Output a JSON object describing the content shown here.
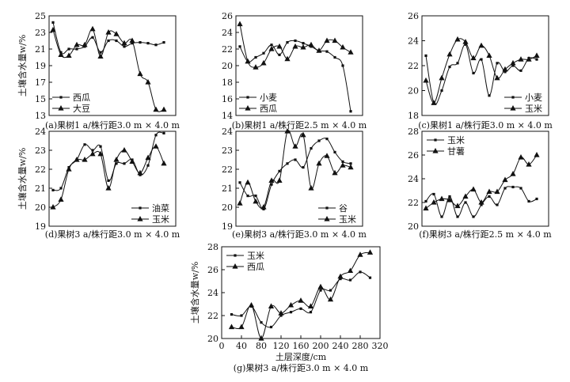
{
  "figure": {
    "ylabel": "土壤含水量w/%",
    "xlabel": "土层深度/cm"
  },
  "chart_data": [
    {
      "type": "line",
      "title": "(a)果树1 a/株行距3.0 m × 4.0 m",
      "ylabel": "土壤含水量w/%",
      "xlim": [
        0,
        320
      ],
      "ylim": [
        13,
        25
      ],
      "yticks": [
        13,
        15,
        17,
        19,
        21,
        23,
        25
      ],
      "legend_position": "bottom-left",
      "series": [
        {
          "name": "西瓜",
          "marker": "square",
          "x": [
            10,
            30,
            50,
            70,
            90,
            110,
            130,
            150,
            170,
            190,
            210,
            230,
            250,
            270,
            290
          ],
          "y": [
            24.2,
            20.6,
            21.0,
            21.0,
            21.3,
            22.4,
            20.6,
            22.0,
            22.0,
            21.3,
            21.7,
            21.8,
            21.7,
            21.5,
            21.8
          ]
        },
        {
          "name": "大豆",
          "marker": "triangle",
          "x": [
            10,
            30,
            50,
            70,
            90,
            110,
            130,
            150,
            170,
            190,
            210,
            230,
            250,
            270,
            290
          ],
          "y": [
            23.3,
            20.3,
            20.2,
            21.5,
            21.5,
            23.4,
            20.1,
            23.0,
            22.8,
            21.7,
            22.0,
            18.0,
            17.0,
            13.7,
            13.7
          ]
        }
      ]
    },
    {
      "type": "line",
      "title": "(b)果树1 a/株行距2.5 m × 4.0 m",
      "xlim": [
        0,
        320
      ],
      "ylim": [
        14,
        26
      ],
      "yticks": [
        14,
        16,
        18,
        20,
        22,
        24,
        26
      ],
      "legend_position": "bottom-left",
      "series": [
        {
          "name": "小麦",
          "marker": "square",
          "x": [
            10,
            30,
            50,
            70,
            90,
            110,
            130,
            150,
            170,
            190,
            210,
            230,
            250,
            270,
            290
          ],
          "y": [
            22.3,
            20.5,
            21.0,
            21.5,
            22.5,
            21.3,
            22.8,
            23.0,
            22.7,
            22.3,
            21.8,
            21.7,
            21.0,
            20.0,
            14.5
          ]
        },
        {
          "name": "西瓜",
          "marker": "triangle",
          "x": [
            10,
            30,
            50,
            70,
            90,
            110,
            130,
            150,
            170,
            190,
            210,
            230,
            250,
            270,
            290
          ],
          "y": [
            25.0,
            20.5,
            19.8,
            20.3,
            22.0,
            22.3,
            20.8,
            22.3,
            22.2,
            22.5,
            21.8,
            23.0,
            23.0,
            22.2,
            21.6
          ]
        }
      ]
    },
    {
      "type": "line",
      "title": "(c)果树1 a/株行距3.0 m × 4.0 m",
      "xlim": [
        0,
        320
      ],
      "ylim": [
        18,
        26
      ],
      "yticks": [
        18,
        20,
        22,
        24,
        26
      ],
      "legend_position": "bottom-right",
      "series": [
        {
          "name": "小麦",
          "marker": "square",
          "x": [
            10,
            30,
            50,
            70,
            90,
            110,
            130,
            150,
            170,
            190,
            210,
            230,
            250,
            270,
            290
          ],
          "y": [
            22.8,
            19.0,
            20.0,
            21.9,
            22.2,
            23.7,
            21.4,
            22.5,
            19.6,
            22.2,
            21.5,
            22.0,
            21.6,
            22.6,
            22.5
          ]
        },
        {
          "name": "玉米",
          "marker": "triangle",
          "x": [
            10,
            30,
            50,
            70,
            90,
            110,
            130,
            150,
            170,
            190,
            210,
            230,
            250,
            270,
            290
          ],
          "y": [
            20.8,
            19.0,
            21.0,
            22.9,
            24.1,
            23.9,
            22.6,
            23.6,
            22.8,
            21.0,
            21.7,
            22.2,
            22.5,
            22.5,
            22.8
          ]
        }
      ]
    },
    {
      "type": "line",
      "title": "(d)果树3 a/株行距3.0 m × 4.0 m",
      "ylabel": "土壤含水量w/%",
      "xlim": [
        0,
        320
      ],
      "ylim": [
        19,
        24
      ],
      "yticks": [
        19,
        20,
        21,
        22,
        23,
        24
      ],
      "legend_position": "bottom-right",
      "series": [
        {
          "name": "油菜",
          "marker": "square",
          "x": [
            10,
            30,
            50,
            70,
            90,
            110,
            130,
            150,
            170,
            190,
            210,
            230,
            250,
            270,
            290
          ],
          "y": [
            20.9,
            21.0,
            22.1,
            22.5,
            23.3,
            23.0,
            23.2,
            21.4,
            22.3,
            22.3,
            22.5,
            21.7,
            22.2,
            23.8,
            23.9
          ]
        },
        {
          "name": "玉米",
          "marker": "triangle",
          "x": [
            10,
            30,
            50,
            70,
            90,
            110,
            130,
            150,
            170,
            190,
            210,
            230,
            250,
            270,
            290
          ],
          "y": [
            20.0,
            20.4,
            22.0,
            22.5,
            22.5,
            22.8,
            22.8,
            21.0,
            22.5,
            23.0,
            22.4,
            21.8,
            22.6,
            23.2,
            22.3
          ]
        }
      ]
    },
    {
      "type": "line",
      "title": "(e)果树3 a/株行距3.0 m × 4.0 m",
      "xlim": [
        0,
        320
      ],
      "ylim": [
        19,
        24
      ],
      "yticks": [
        19,
        20,
        21,
        22,
        23,
        24
      ],
      "legend_position": "bottom-right",
      "series": [
        {
          "name": "谷",
          "marker": "square",
          "x": [
            10,
            30,
            50,
            70,
            90,
            110,
            130,
            150,
            170,
            190,
            210,
            230,
            250,
            270,
            290
          ],
          "y": [
            21.3,
            20.6,
            20.6,
            19.9,
            21.2,
            21.9,
            22.3,
            22.5,
            22.1,
            23.1,
            23.5,
            23.6,
            22.9,
            22.4,
            22.3
          ]
        },
        {
          "name": "玉米",
          "marker": "triangle",
          "x": [
            10,
            30,
            50,
            70,
            90,
            110,
            130,
            150,
            170,
            190,
            210,
            230,
            250,
            270,
            290
          ],
          "y": [
            20.2,
            21.3,
            20.3,
            20.0,
            21.4,
            21.4,
            24.0,
            23.2,
            23.8,
            21.0,
            22.3,
            22.7,
            21.8,
            22.2,
            22.1
          ]
        }
      ]
    },
    {
      "type": "line",
      "title": "(f)果树3 a/株行距2.5 m × 4.0 m",
      "xlim": [
        0,
        320
      ],
      "ylim": [
        20,
        28
      ],
      "yticks": [
        20,
        22,
        24,
        26,
        28
      ],
      "legend_position": "top-left",
      "series": [
        {
          "name": "玉米",
          "marker": "square",
          "x": [
            10,
            30,
            50,
            70,
            90,
            110,
            130,
            150,
            170,
            190,
            210,
            230,
            250,
            270,
            290
          ],
          "y": [
            22.1,
            22.7,
            20.8,
            22.5,
            20.8,
            22.0,
            20.8,
            21.8,
            22.5,
            21.8,
            23.2,
            23.3,
            23.2,
            22.1,
            22.3
          ]
        },
        {
          "name": "甘薯",
          "marker": "triangle",
          "x": [
            10,
            30,
            50,
            70,
            90,
            110,
            130,
            150,
            170,
            190,
            210,
            230,
            250,
            270,
            290
          ],
          "y": [
            21.5,
            22.0,
            22.3,
            22.2,
            21.7,
            22.5,
            23.1,
            22.0,
            22.9,
            22.9,
            23.9,
            24.4,
            25.8,
            25.2,
            26.0
          ]
        }
      ]
    },
    {
      "type": "line",
      "title": "(g)果树3 a/株行距3.0 m × 4.0 m",
      "ylabel": "土壤含水量w/%",
      "xlabel": "土层深度/cm",
      "xlim": [
        0,
        320
      ],
      "ylim": [
        20,
        28
      ],
      "yticks": [
        20,
        22,
        24,
        26,
        28
      ],
      "xticks": [
        0,
        40,
        80,
        120,
        160,
        200,
        240,
        280,
        320
      ],
      "legend_position": "top-left",
      "series": [
        {
          "name": "玉米",
          "marker": "square",
          "x": [
            20,
            40,
            60,
            80,
            100,
            120,
            140,
            160,
            180,
            200,
            220,
            240,
            260,
            280,
            300
          ],
          "y": [
            22.1,
            22.0,
            22.8,
            21.4,
            21.0,
            22.0,
            22.3,
            22.6,
            22.3,
            24.2,
            24.2,
            25.2,
            25.1,
            25.8,
            25.3
          ]
        },
        {
          "name": "西瓜",
          "marker": "triangle",
          "x": [
            20,
            40,
            60,
            80,
            100,
            120,
            140,
            160,
            180,
            200,
            220,
            240,
            260,
            280,
            300
          ],
          "y": [
            21.0,
            21.0,
            22.9,
            20.0,
            22.8,
            22.2,
            22.9,
            23.3,
            22.8,
            24.5,
            23.4,
            25.4,
            25.9,
            27.3,
            27.5
          ]
        }
      ]
    }
  ]
}
